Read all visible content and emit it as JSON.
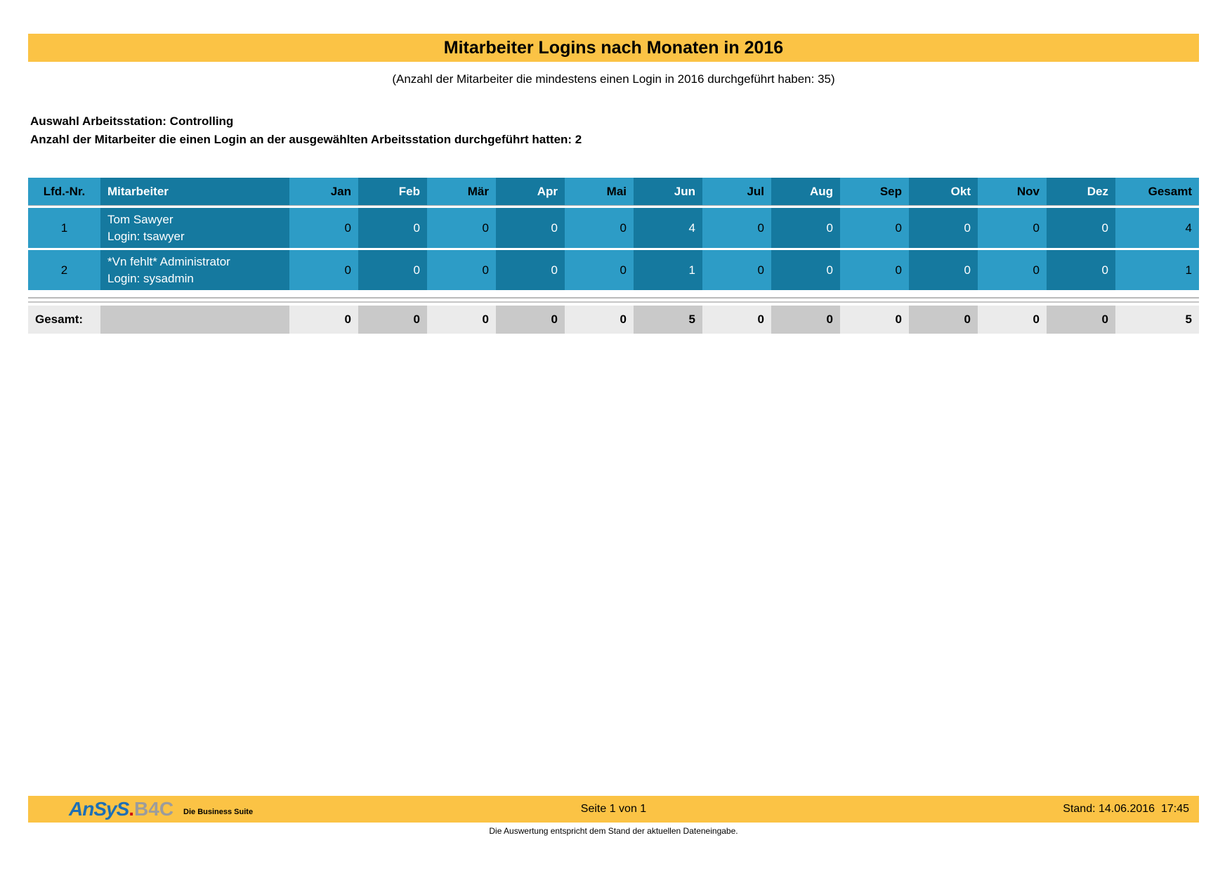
{
  "title": "Mitarbeiter Logins nach Monaten in 2016",
  "subtitle": "(Anzahl der Mitarbeiter die mindestens einen Login in 2016 durchgeführt haben: 35)",
  "info": {
    "line1": "Auswahl Arbeitsstation: Controlling",
    "line2": "Anzahl der Mitarbeiter die einen Login an der ausgewählten Arbeitsstation durchgeführt hatten: 2"
  },
  "table": {
    "columns": [
      "Lfd.-Nr.",
      "Mitarbeiter",
      "Jan",
      "Feb",
      "Mär",
      "Apr",
      "Mai",
      "Jun",
      "Jul",
      "Aug",
      "Sep",
      "Okt",
      "Nov",
      "Dez",
      "Gesamt"
    ],
    "rows": [
      {
        "nr": "1",
        "name": "Tom Sawyer",
        "login": "Login: tsawyer",
        "values": [
          0,
          0,
          0,
          0,
          0,
          4,
          0,
          0,
          0,
          0,
          0,
          0
        ],
        "total": 4
      },
      {
        "nr": "2",
        "name": "*Vn fehlt* Administrator",
        "login": "Login: sysadmin",
        "values": [
          0,
          0,
          0,
          0,
          0,
          1,
          0,
          0,
          0,
          0,
          0,
          0
        ],
        "total": 1
      }
    ],
    "totals_row": {
      "label": "Gesamt:",
      "values": [
        0,
        0,
        0,
        0,
        0,
        5,
        0,
        0,
        0,
        0,
        0,
        0
      ],
      "total": 5
    }
  },
  "footer": {
    "logo": {
      "brand": "AnSyS",
      "dot": ".",
      "product": "B4C",
      "tagline": "Die Business Suite"
    },
    "page_label": "Seite 1 von 1",
    "stand_label": "Stand: 14.06.2016  17:45",
    "note": "Die Auswertung entspricht dem Stand der aktuellen Dateneingabe."
  },
  "colors": {
    "accent_yellow": "#FBC345",
    "column_light_blue": "#2D9CC6",
    "column_dark_blue": "#15799F",
    "totals_light_gray": "#EBEBEB",
    "totals_dark_gray": "#C9C9C9"
  }
}
